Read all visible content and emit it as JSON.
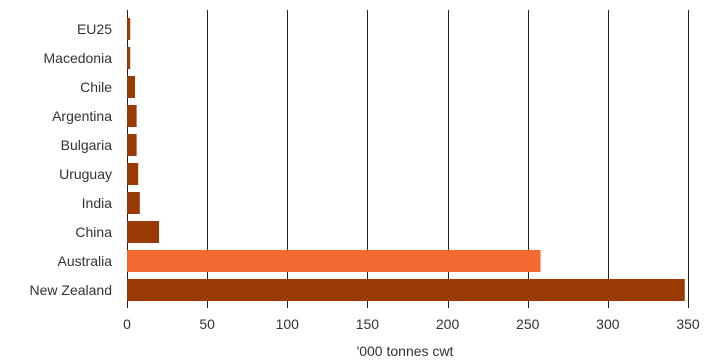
{
  "chart_data": {
    "type": "bar",
    "orientation": "horizontal",
    "categories": [
      "EU25",
      "Macedonia",
      "Chile",
      "Argentina",
      "Bulgaria",
      "Uruguay",
      "India",
      "China",
      "Australia",
      "New Zealand"
    ],
    "values": [
      2,
      2,
      5,
      6,
      6,
      7,
      8,
      20,
      258,
      348
    ],
    "bar_colors": [
      "#9a3b06",
      "#9a3b06",
      "#9a3b06",
      "#9a3b06",
      "#9a3b06",
      "#9a3b06",
      "#9a3b06",
      "#9a3b06",
      "#f26a32",
      "#9a3b06"
    ],
    "xlabel": "'000 tonnes cwt",
    "ylabel": "",
    "title": "",
    "xlim": [
      0,
      350
    ],
    "xticks": [
      0,
      50,
      100,
      150,
      200,
      250,
      300,
      350
    ],
    "grid": "vertical",
    "gridline_color": "#222222",
    "text_color": "#333333"
  }
}
